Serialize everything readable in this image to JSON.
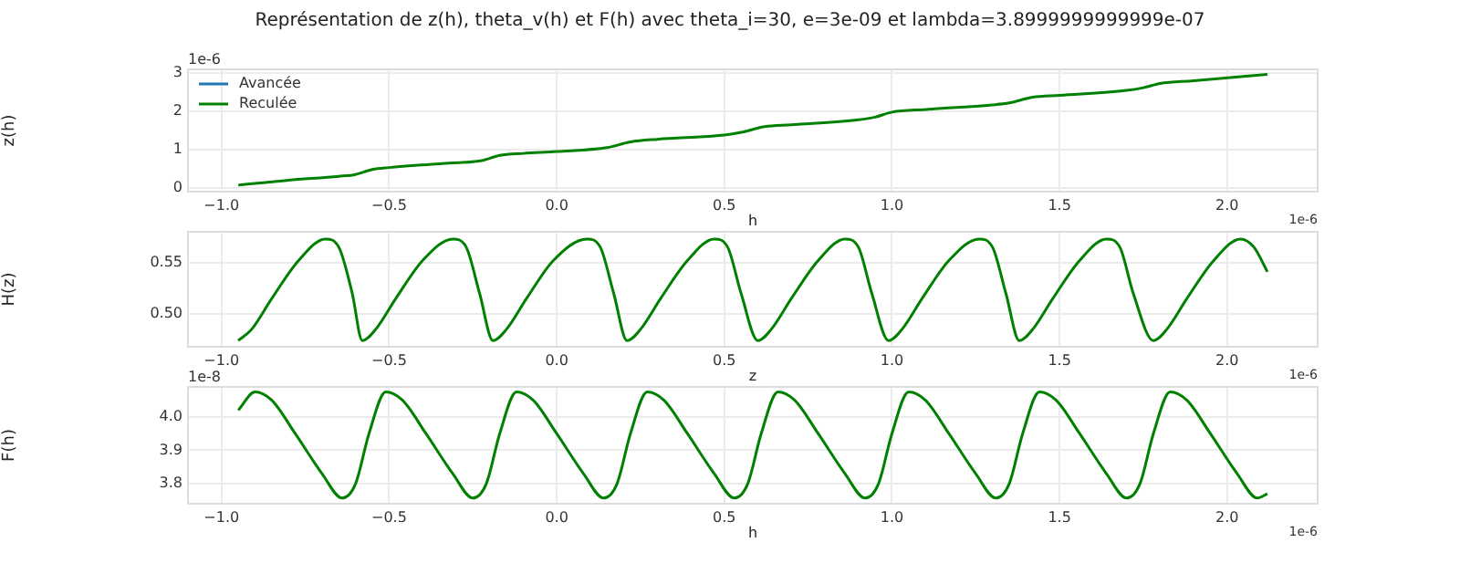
{
  "chart_data": [
    {
      "type": "line",
      "title": "Représentation de z(h), theta_v(h) et F(h) avec theta_i=30, e=3e-09 et lambda=3.8999999999999e-07",
      "xlabel": "h",
      "ylabel": "z(h)",
      "annotations": [
        "1e-6",
        "1e-6"
      ],
      "x": [
        -0.95,
        -0.8,
        -0.65,
        -0.6,
        -0.55,
        -0.5,
        -0.35,
        -0.22,
        -0.17,
        -0.1,
        0.0,
        0.15,
        0.22,
        0.3,
        0.5,
        0.55,
        0.62,
        0.7,
        0.9,
        0.95,
        1.0,
        1.1,
        1.3,
        1.35,
        1.42,
        1.5,
        1.7,
        1.75,
        1.8,
        1.9,
        2.12
      ],
      "series": [
        {
          "name": "Avancée",
          "color": "#1f77b4",
          "values": [
            null,
            null,
            null,
            null,
            null,
            null,
            null,
            null,
            null,
            null,
            null,
            null,
            null,
            null,
            null,
            null,
            null,
            null,
            null,
            null,
            null,
            null,
            null,
            null,
            null,
            null,
            null,
            null,
            null,
            null,
            null
          ]
        },
        {
          "name": "Reculée",
          "color": "#008000",
          "values": [
            0.07,
            0.2,
            0.3,
            0.35,
            0.48,
            0.53,
            0.63,
            0.72,
            0.85,
            0.9,
            0.95,
            1.05,
            1.2,
            1.27,
            1.38,
            1.45,
            1.6,
            1.65,
            1.78,
            1.85,
            1.98,
            2.05,
            2.17,
            2.22,
            2.37,
            2.42,
            2.55,
            2.62,
            2.73,
            2.8,
            2.97
          ]
        }
      ],
      "xlim": [
        -1.1,
        2.27
      ],
      "xticks": [
        {
          "value": -1.0,
          "label": "−1.0"
        },
        {
          "value": -0.5,
          "label": "−0.5"
        },
        {
          "value": 0,
          "label": "0.0"
        },
        {
          "value": 0.5,
          "label": "0.5"
        },
        {
          "value": 1.0,
          "label": "1.0"
        },
        {
          "value": 1.5,
          "label": "1.5"
        },
        {
          "value": 2.0,
          "label": "2.0"
        }
      ],
      "ylim": [
        -0.1,
        3.1
      ],
      "yticks": [
        0,
        1,
        2,
        3
      ],
      "grid": true,
      "legend": "top left"
    },
    {
      "type": "line",
      "xlabel": "z",
      "ylabel": "H(z)",
      "annotations": [
        "1e-6"
      ],
      "x": [
        -0.95,
        -0.91,
        -0.85,
        -0.77,
        -0.69,
        -0.65,
        -0.61,
        -0.58,
        -0.54,
        -0.48,
        -0.4,
        -0.31,
        -0.27,
        -0.23,
        -0.19,
        -0.15,
        -0.09,
        -0.01,
        0.09,
        0.13,
        0.17,
        0.21,
        0.25,
        0.31,
        0.39,
        0.47,
        0.51,
        0.55,
        0.6,
        0.64,
        0.7,
        0.78,
        0.86,
        0.9,
        0.94,
        0.99,
        1.03,
        1.09,
        1.17,
        1.26,
        1.3,
        1.34,
        1.38,
        1.42,
        1.48,
        1.56,
        1.64,
        1.68,
        1.72,
        1.78,
        1.82,
        1.88,
        1.96,
        2.04,
        2.08,
        2.12
      ],
      "series": [
        {
          "color": "#008000",
          "values": [
            0.474,
            0.485,
            0.515,
            0.552,
            0.573,
            0.565,
            0.52,
            0.474,
            0.485,
            0.515,
            0.552,
            0.573,
            0.565,
            0.52,
            0.474,
            0.485,
            0.515,
            0.552,
            0.573,
            0.565,
            0.52,
            0.474,
            0.485,
            0.515,
            0.552,
            0.573,
            0.565,
            0.52,
            0.474,
            0.485,
            0.515,
            0.552,
            0.573,
            0.565,
            0.52,
            0.474,
            0.485,
            0.515,
            0.552,
            0.573,
            0.565,
            0.52,
            0.474,
            0.485,
            0.515,
            0.552,
            0.573,
            0.565,
            0.52,
            0.474,
            0.485,
            0.515,
            0.552,
            0.573,
            0.565,
            0.541
          ]
        }
      ],
      "xlim": [
        -1.1,
        2.27
      ],
      "xticks": [
        {
          "value": -1.0,
          "label": "−1.0"
        },
        {
          "value": -0.5,
          "label": "−0.5"
        },
        {
          "value": 0,
          "label": "0.0"
        },
        {
          "value": 0.5,
          "label": "0.5"
        },
        {
          "value": 1.0,
          "label": "1.0"
        },
        {
          "value": 1.5,
          "label": "1.5"
        },
        {
          "value": 2.0,
          "label": "2.0"
        }
      ],
      "ylim": [
        0.468,
        0.58
      ],
      "yticks": [
        {
          "value": 0.5,
          "label": "0.50"
        },
        0.55
      ],
      "grid": true
    },
    {
      "type": "line",
      "xlabel": "h",
      "ylabel": "F(h)",
      "annotations": [
        "1e-8",
        "1e-6"
      ],
      "x": [
        -0.95,
        -0.9,
        -0.85,
        -0.78,
        -0.7,
        -0.64,
        -0.6,
        -0.56,
        -0.51,
        -0.46,
        -0.39,
        -0.31,
        -0.25,
        -0.21,
        -0.17,
        -0.12,
        -0.07,
        0.0,
        0.08,
        0.14,
        0.18,
        0.22,
        0.27,
        0.32,
        0.39,
        0.47,
        0.53,
        0.57,
        0.61,
        0.66,
        0.71,
        0.78,
        0.86,
        0.92,
        0.96,
        1.0,
        1.05,
        1.1,
        1.17,
        1.25,
        1.31,
        1.35,
        1.39,
        1.44,
        1.49,
        1.56,
        1.64,
        1.7,
        1.74,
        1.78,
        1.83,
        1.88,
        1.95,
        2.03,
        2.09,
        2.12
      ],
      "series": [
        {
          "color": "#008000",
          "values": [
            4.02,
            4.075,
            4.05,
            3.95,
            3.83,
            3.757,
            3.8,
            3.95,
            4.075,
            4.05,
            3.95,
            3.83,
            3.757,
            3.8,
            3.95,
            4.075,
            4.05,
            3.95,
            3.83,
            3.757,
            3.8,
            3.95,
            4.075,
            4.05,
            3.95,
            3.83,
            3.757,
            3.8,
            3.95,
            4.075,
            4.05,
            3.95,
            3.83,
            3.757,
            3.8,
            3.95,
            4.075,
            4.05,
            3.95,
            3.83,
            3.757,
            3.8,
            3.95,
            4.075,
            4.05,
            3.95,
            3.83,
            3.757,
            3.8,
            3.95,
            4.075,
            4.05,
            3.95,
            3.83,
            3.757,
            3.77
          ]
        }
      ],
      "xlim": [
        -1.1,
        2.27
      ],
      "xticks": [
        {
          "value": -1.0,
          "label": "−1.0"
        },
        {
          "value": -0.5,
          "label": "−0.5"
        },
        {
          "value": 0,
          "label": "0.0"
        },
        {
          "value": 0.5,
          "label": "0.5"
        },
        {
          "value": 1.0,
          "label": "1.0"
        },
        {
          "value": 1.5,
          "label": "1.5"
        },
        {
          "value": 2.0,
          "label": "2.0"
        }
      ],
      "ylim": [
        3.74,
        4.09
      ],
      "yticks": [
        3.8,
        3.9,
        {
          "value": 4.0,
          "label": "4.0"
        }
      ],
      "grid": true
    }
  ]
}
